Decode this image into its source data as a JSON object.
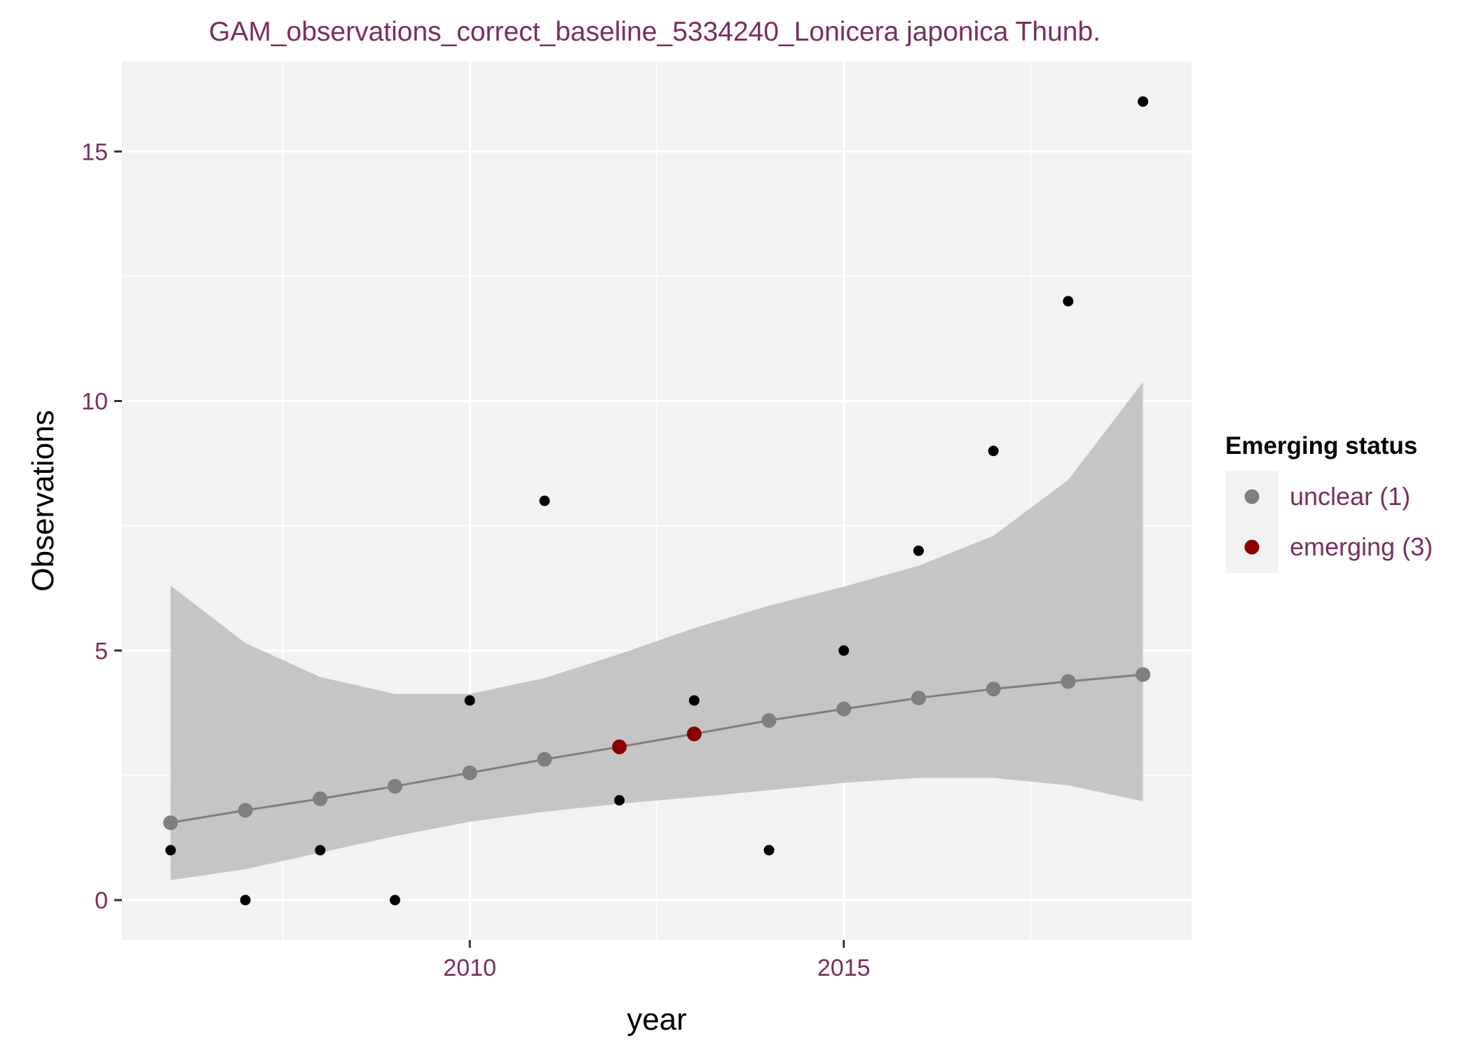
{
  "chart_data": {
    "type": "scatter",
    "title": "GAM_observations_correct_baseline_5334240_Lonicera japonica Thunb.",
    "xlabel": "year",
    "ylabel": "Observations",
    "xlim": [
      2005.35,
      2019.65
    ],
    "ylim": [
      -0.8,
      16.8
    ],
    "x_ticks": [
      2010,
      2015
    ],
    "y_ticks": [
      0,
      5,
      10,
      15
    ],
    "grid": true,
    "observed": {
      "x": [
        2006,
        2007,
        2008,
        2009,
        2010,
        2011,
        2012,
        2013,
        2014,
        2015,
        2016,
        2017,
        2018,
        2019
      ],
      "y": [
        1,
        0,
        1,
        0,
        4,
        8,
        2,
        4,
        1,
        5,
        7,
        9,
        12,
        16
      ]
    },
    "fit": {
      "x": [
        2006,
        2007,
        2008,
        2009,
        2010,
        2011,
        2012,
        2013,
        2014,
        2015,
        2016,
        2017,
        2018,
        2019
      ],
      "y": [
        1.55,
        1.8,
        2.03,
        2.28,
        2.55,
        2.82,
        3.07,
        3.33,
        3.6,
        3.83,
        4.05,
        4.23,
        4.38,
        4.52
      ],
      "lower": [
        0.4,
        0.62,
        0.95,
        1.28,
        1.57,
        1.77,
        1.93,
        2.06,
        2.2,
        2.35,
        2.45,
        2.45,
        2.3,
        1.98
      ],
      "upper": [
        6.3,
        5.15,
        4.47,
        4.13,
        4.13,
        4.45,
        4.93,
        5.45,
        5.9,
        6.28,
        6.7,
        7.3,
        8.42,
        10.38
      ],
      "status": [
        "unclear",
        "unclear",
        "unclear",
        "unclear",
        "unclear",
        "unclear",
        "emerging",
        "emerging",
        "unclear",
        "unclear",
        "unclear",
        "unclear",
        "unclear",
        "unclear"
      ]
    },
    "legend": {
      "title": "Emerging status",
      "placement": "right",
      "items": [
        {
          "key": "unclear",
          "label": "unclear (1)",
          "color": "#7f7f7f"
        },
        {
          "key": "emerging",
          "label": "emerging (3)",
          "color": "#8b0000"
        }
      ]
    },
    "colors": {
      "panel": "#f2f2f2",
      "grid": "#ffffff",
      "ribbon": "#c5c5c5",
      "line": "#7f7f7f",
      "observed_point": "#000000",
      "text_accent": "#7a2e5e"
    }
  }
}
